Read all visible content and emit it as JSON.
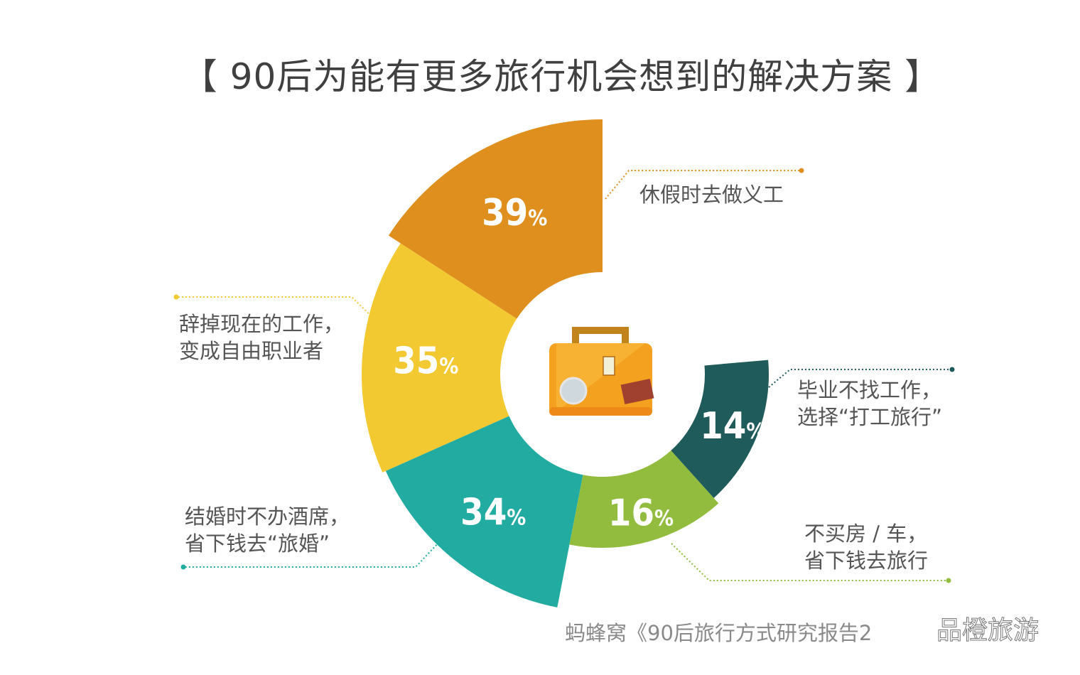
{
  "chart_data": {
    "type": "radial-bar",
    "title": "【 90后为能有更多旅行机会想到的解决方案 】",
    "unit": "%",
    "categories": [
      "休假时去做义工",
      "辞掉现在的工作，变成自由职业者",
      "结婚时不办酒席，省下钱去“旅婚”",
      "不买房 / 车，省下钱去旅行",
      "毕业不找工作，选择“打工旅行”"
    ],
    "values": [
      39,
      35,
      34,
      16,
      14
    ],
    "value_labels": [
      "39%",
      "35%",
      "34%",
      "16%",
      "14%"
    ],
    "colors": [
      "#df8f1e",
      "#f2c931",
      "#22aba1",
      "#92bc3e",
      "#1f5b5a"
    ],
    "labels": [
      [
        "休假时去做义工"
      ],
      [
        "辞掉现在的工作，",
        "变成自由职业者"
      ],
      [
        "结婚时不办酒席，",
        "省下钱去“旅婚”"
      ],
      [
        "不买房 / 车，",
        "省下钱去旅行"
      ],
      [
        "毕业不找工作，",
        "选择“打工旅行”"
      ]
    ],
    "center_icon": "suitcase-icon"
  },
  "source": "蚂蜂窝《90后旅行方式研究报告2",
  "watermark": "品橙旅游"
}
